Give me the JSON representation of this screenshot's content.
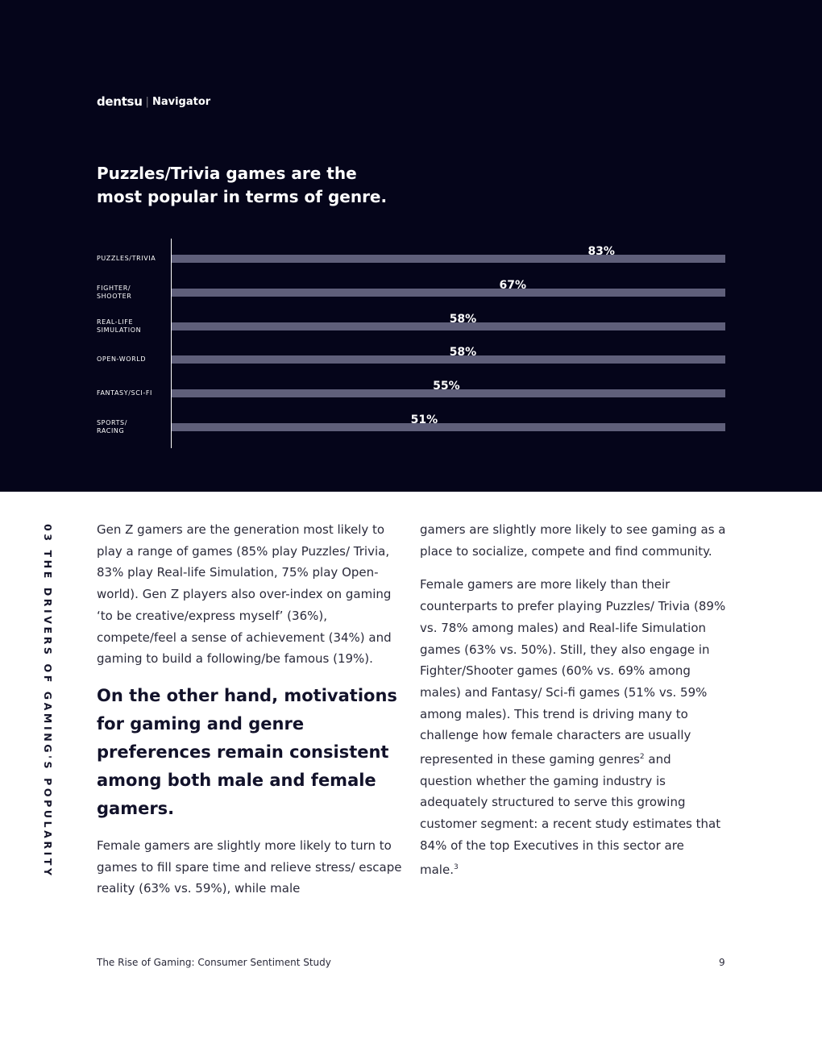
{
  "brand": {
    "logo": "dentsu",
    "separator": "|",
    "product": "Navigator"
  },
  "headline": "Puzzles/Trivia games are the most popular  in terms of genre.",
  "chart_data": {
    "type": "bar",
    "orientation": "horizontal",
    "categories": [
      "Puzzles/Trivia",
      "Fighter/ Shooter",
      "Real-life Simulation",
      "Open-world",
      "Fantasy/Sci-Fi",
      "Sports/ Racing"
    ],
    "values": [
      83,
      67,
      58,
      58,
      55,
      51
    ],
    "value_labels": [
      "83%",
      "67%",
      "58%",
      "58%",
      "55%",
      "51%"
    ],
    "xlim": [
      0,
      100
    ],
    "unit": "%",
    "colors": {
      "bar": "#5f5f7a",
      "background": "#05051a"
    }
  },
  "side_label": "03 THE DRIVERS OF GAMING'S POPULARITY",
  "col1": {
    "p1": "Gen Z gamers are the generation most likely to play a range of games (85% play Puzzles/ Trivia, 83% play Real-life Simulation, 75% play Open-world). Gen Z players also over-index on gaming ‘to be creative/express myself’ (36%), compete/feel a sense of achievement (34%) and gaming to build a following/be famous (19%).",
    "pull": "On the other hand, motivations for gaming and genre preferences remain consistent among both male and female gamers.",
    "p2": "Female gamers are slightly more likely to turn to games to fill spare time and relieve stress/ escape reality (63% vs. 59%), while male"
  },
  "col2": {
    "p1": "gamers are slightly more likely to see gaming as a place to socialize, compete and find community.",
    "p2a": "Female gamers are more likely than their counterparts to prefer playing Puzzles/ Trivia (89% vs. 78% among males) and Real-life Simulation games (63% vs. 50%). Still, they also engage in Fighter/Shooter games (60% vs. 69% among males) and Fantasy/ Sci-fi games (51% vs. 59% among males). This trend is driving many to challenge how female characters are usually represented in these gaming genres",
    "sup1": "2",
    "p2b": " and question whether the gaming industry is adequately structured to serve this growing customer segment: a recent study estimates that 84% of the top Executives in this sector are male.",
    "sup2": "3"
  },
  "footer": {
    "title": "The Rise of Gaming: Consumer Sentiment Study",
    "page": "9"
  }
}
